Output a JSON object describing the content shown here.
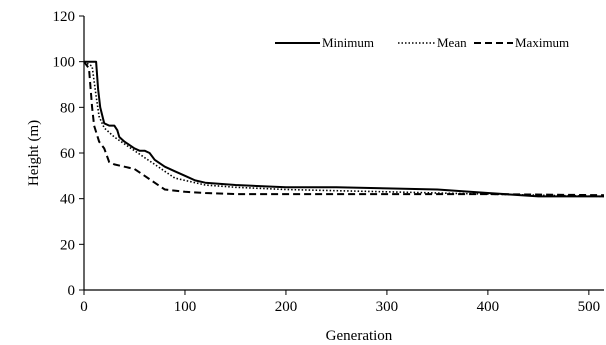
{
  "chart_data": {
    "type": "line",
    "title": "",
    "xlabel": "Generation",
    "ylabel": "Height (m)",
    "xlim": [
      0,
      515
    ],
    "ylim": [
      0,
      120
    ],
    "xticks": [
      0,
      100,
      200,
      300,
      400,
      500
    ],
    "yticks": [
      0,
      20,
      40,
      60,
      80,
      100,
      120
    ],
    "grid": false,
    "legend_position": "top-right",
    "series": [
      {
        "name": "Minimum",
        "dash": "solid",
        "x": [
          0,
          12,
          14,
          16,
          20,
          25,
          30,
          33,
          35,
          40,
          50,
          55,
          60,
          65,
          70,
          80,
          90,
          100,
          110,
          120,
          150,
          200,
          250,
          300,
          350,
          400,
          450,
          515
        ],
        "y": [
          100,
          100,
          88,
          80,
          73,
          72,
          72,
          70,
          67,
          65,
          62,
          61,
          61,
          60,
          57,
          54,
          52,
          50,
          48,
          47,
          46,
          45,
          45,
          44.5,
          44,
          42.5,
          41,
          41
        ]
      },
      {
        "name": "Mean",
        "dash": "dotted",
        "x": [
          0,
          8,
          12,
          15,
          20,
          30,
          40,
          50,
          60,
          70,
          80,
          90,
          100,
          110,
          120,
          150,
          200,
          250,
          300,
          350,
          400,
          450,
          515
        ],
        "y": [
          100,
          98,
          85,
          76,
          71,
          67,
          64,
          61,
          58,
          55,
          52,
          49,
          48,
          47,
          46,
          45,
          44,
          43.5,
          43,
          42.5,
          42,
          41.5,
          41
        ]
      },
      {
        "name": "Maximum",
        "dash": "dashed",
        "x": [
          0,
          5,
          8,
          10,
          15,
          20,
          25,
          30,
          40,
          50,
          60,
          70,
          80,
          100,
          120,
          150,
          200,
          300,
          400,
          515
        ],
        "y": [
          100,
          97,
          80,
          72,
          65,
          62,
          56,
          55,
          54,
          53,
          50,
          47,
          44,
          43,
          42.5,
          42,
          42,
          42,
          42,
          41.5
        ]
      }
    ]
  }
}
